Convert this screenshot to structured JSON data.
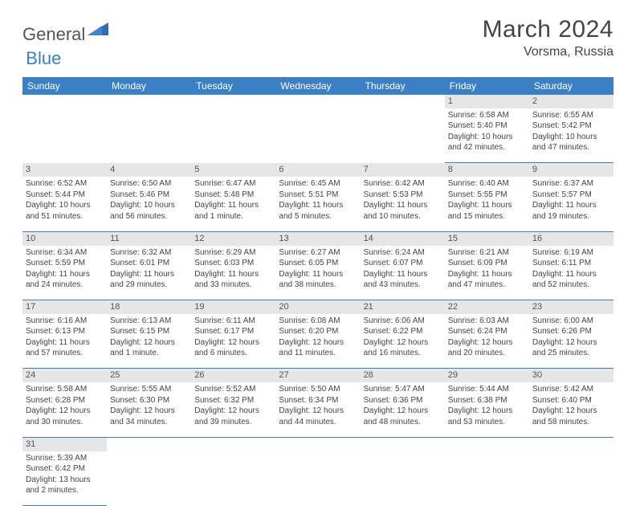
{
  "logo": {
    "part1": "General",
    "part2": "Blue"
  },
  "title": "March 2024",
  "location": "Vorsma, Russia",
  "colors": {
    "header_bg": "#3b7fc4",
    "header_text": "#ffffff",
    "daynum_bg": "#e6e6e6",
    "border": "#3b7fc4",
    "text": "#444444",
    "logo_gray": "#555555",
    "logo_blue": "#3b7fc4"
  },
  "weekdays": [
    "Sunday",
    "Monday",
    "Tuesday",
    "Wednesday",
    "Thursday",
    "Friday",
    "Saturday"
  ],
  "weeks": [
    [
      null,
      null,
      null,
      null,
      null,
      {
        "n": "1",
        "sr": "Sunrise: 6:58 AM",
        "ss": "Sunset: 5:40 PM",
        "d1": "Daylight: 10 hours",
        "d2": "and 42 minutes."
      },
      {
        "n": "2",
        "sr": "Sunrise: 6:55 AM",
        "ss": "Sunset: 5:42 PM",
        "d1": "Daylight: 10 hours",
        "d2": "and 47 minutes."
      }
    ],
    [
      {
        "n": "3",
        "sr": "Sunrise: 6:52 AM",
        "ss": "Sunset: 5:44 PM",
        "d1": "Daylight: 10 hours",
        "d2": "and 51 minutes."
      },
      {
        "n": "4",
        "sr": "Sunrise: 6:50 AM",
        "ss": "Sunset: 5:46 PM",
        "d1": "Daylight: 10 hours",
        "d2": "and 56 minutes."
      },
      {
        "n": "5",
        "sr": "Sunrise: 6:47 AM",
        "ss": "Sunset: 5:48 PM",
        "d1": "Daylight: 11 hours",
        "d2": "and 1 minute."
      },
      {
        "n": "6",
        "sr": "Sunrise: 6:45 AM",
        "ss": "Sunset: 5:51 PM",
        "d1": "Daylight: 11 hours",
        "d2": "and 5 minutes."
      },
      {
        "n": "7",
        "sr": "Sunrise: 6:42 AM",
        "ss": "Sunset: 5:53 PM",
        "d1": "Daylight: 11 hours",
        "d2": "and 10 minutes."
      },
      {
        "n": "8",
        "sr": "Sunrise: 6:40 AM",
        "ss": "Sunset: 5:55 PM",
        "d1": "Daylight: 11 hours",
        "d2": "and 15 minutes."
      },
      {
        "n": "9",
        "sr": "Sunrise: 6:37 AM",
        "ss": "Sunset: 5:57 PM",
        "d1": "Daylight: 11 hours",
        "d2": "and 19 minutes."
      }
    ],
    [
      {
        "n": "10",
        "sr": "Sunrise: 6:34 AM",
        "ss": "Sunset: 5:59 PM",
        "d1": "Daylight: 11 hours",
        "d2": "and 24 minutes."
      },
      {
        "n": "11",
        "sr": "Sunrise: 6:32 AM",
        "ss": "Sunset: 6:01 PM",
        "d1": "Daylight: 11 hours",
        "d2": "and 29 minutes."
      },
      {
        "n": "12",
        "sr": "Sunrise: 6:29 AM",
        "ss": "Sunset: 6:03 PM",
        "d1": "Daylight: 11 hours",
        "d2": "and 33 minutes."
      },
      {
        "n": "13",
        "sr": "Sunrise: 6:27 AM",
        "ss": "Sunset: 6:05 PM",
        "d1": "Daylight: 11 hours",
        "d2": "and 38 minutes."
      },
      {
        "n": "14",
        "sr": "Sunrise: 6:24 AM",
        "ss": "Sunset: 6:07 PM",
        "d1": "Daylight: 11 hours",
        "d2": "and 43 minutes."
      },
      {
        "n": "15",
        "sr": "Sunrise: 6:21 AM",
        "ss": "Sunset: 6:09 PM",
        "d1": "Daylight: 11 hours",
        "d2": "and 47 minutes."
      },
      {
        "n": "16",
        "sr": "Sunrise: 6:19 AM",
        "ss": "Sunset: 6:11 PM",
        "d1": "Daylight: 11 hours",
        "d2": "and 52 minutes."
      }
    ],
    [
      {
        "n": "17",
        "sr": "Sunrise: 6:16 AM",
        "ss": "Sunset: 6:13 PM",
        "d1": "Daylight: 11 hours",
        "d2": "and 57 minutes."
      },
      {
        "n": "18",
        "sr": "Sunrise: 6:13 AM",
        "ss": "Sunset: 6:15 PM",
        "d1": "Daylight: 12 hours",
        "d2": "and 1 minute."
      },
      {
        "n": "19",
        "sr": "Sunrise: 6:11 AM",
        "ss": "Sunset: 6:17 PM",
        "d1": "Daylight: 12 hours",
        "d2": "and 6 minutes."
      },
      {
        "n": "20",
        "sr": "Sunrise: 6:08 AM",
        "ss": "Sunset: 6:20 PM",
        "d1": "Daylight: 12 hours",
        "d2": "and 11 minutes."
      },
      {
        "n": "21",
        "sr": "Sunrise: 6:06 AM",
        "ss": "Sunset: 6:22 PM",
        "d1": "Daylight: 12 hours",
        "d2": "and 16 minutes."
      },
      {
        "n": "22",
        "sr": "Sunrise: 6:03 AM",
        "ss": "Sunset: 6:24 PM",
        "d1": "Daylight: 12 hours",
        "d2": "and 20 minutes."
      },
      {
        "n": "23",
        "sr": "Sunrise: 6:00 AM",
        "ss": "Sunset: 6:26 PM",
        "d1": "Daylight: 12 hours",
        "d2": "and 25 minutes."
      }
    ],
    [
      {
        "n": "24",
        "sr": "Sunrise: 5:58 AM",
        "ss": "Sunset: 6:28 PM",
        "d1": "Daylight: 12 hours",
        "d2": "and 30 minutes."
      },
      {
        "n": "25",
        "sr": "Sunrise: 5:55 AM",
        "ss": "Sunset: 6:30 PM",
        "d1": "Daylight: 12 hours",
        "d2": "and 34 minutes."
      },
      {
        "n": "26",
        "sr": "Sunrise: 5:52 AM",
        "ss": "Sunset: 6:32 PM",
        "d1": "Daylight: 12 hours",
        "d2": "and 39 minutes."
      },
      {
        "n": "27",
        "sr": "Sunrise: 5:50 AM",
        "ss": "Sunset: 6:34 PM",
        "d1": "Daylight: 12 hours",
        "d2": "and 44 minutes."
      },
      {
        "n": "28",
        "sr": "Sunrise: 5:47 AM",
        "ss": "Sunset: 6:36 PM",
        "d1": "Daylight: 12 hours",
        "d2": "and 48 minutes."
      },
      {
        "n": "29",
        "sr": "Sunrise: 5:44 AM",
        "ss": "Sunset: 6:38 PM",
        "d1": "Daylight: 12 hours",
        "d2": "and 53 minutes."
      },
      {
        "n": "30",
        "sr": "Sunrise: 5:42 AM",
        "ss": "Sunset: 6:40 PM",
        "d1": "Daylight: 12 hours",
        "d2": "and 58 minutes."
      }
    ],
    [
      {
        "n": "31",
        "sr": "Sunrise: 5:39 AM",
        "ss": "Sunset: 6:42 PM",
        "d1": "Daylight: 13 hours",
        "d2": "and 2 minutes."
      },
      null,
      null,
      null,
      null,
      null,
      null
    ]
  ]
}
